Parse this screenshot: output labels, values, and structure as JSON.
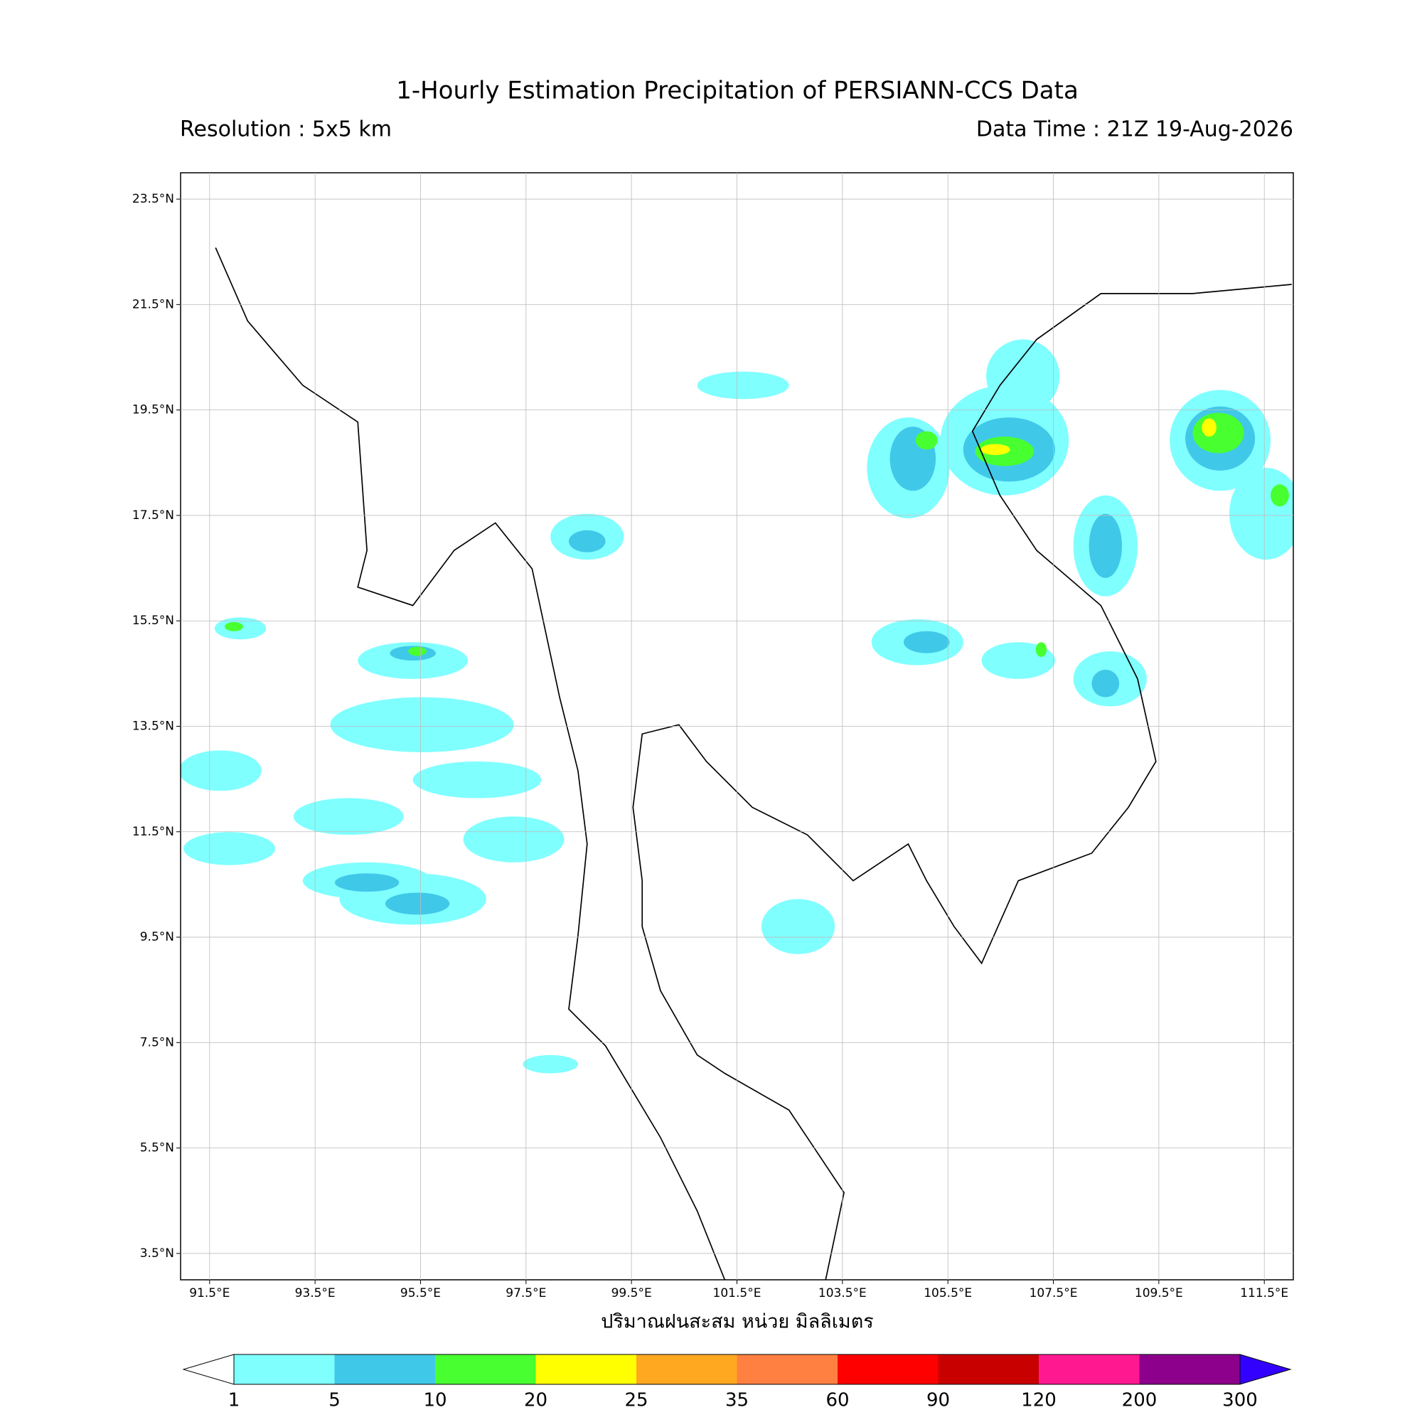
{
  "header": {
    "title": "1-Hourly Estimation Precipitation of PERSIANN-CCS Data",
    "resolution": "Resolution : 5x5 km",
    "data_time": "Data Time : 21Z 19-Aug-2026"
  },
  "map": {
    "xlim": [
      90.95,
      112.05
    ],
    "ylim": [
      3,
      24
    ],
    "xticks": [
      {
        "value": 91.5,
        "label": "91.5°E"
      },
      {
        "value": 93.5,
        "label": "93.5°E"
      },
      {
        "value": 95.5,
        "label": "95.5°E"
      },
      {
        "value": 97.5,
        "label": "97.5°E"
      },
      {
        "value": 99.5,
        "label": "99.5°E"
      },
      {
        "value": 101.5,
        "label": "101.5°E"
      },
      {
        "value": 103.5,
        "label": "103.5°E"
      },
      {
        "value": 105.5,
        "label": "105.5°E"
      },
      {
        "value": 107.5,
        "label": "107.5°E"
      },
      {
        "value": 109.5,
        "label": "109.5°E"
      },
      {
        "value": 111.5,
        "label": "111.5°E"
      }
    ],
    "yticks": [
      {
        "value": 3.5,
        "label": "3.5°N"
      },
      {
        "value": 5.5,
        "label": "5.5°N"
      },
      {
        "value": 7.5,
        "label": "7.5°N"
      },
      {
        "value": 9.5,
        "label": "9.5°N"
      },
      {
        "value": 11.5,
        "label": "11.5°N"
      },
      {
        "value": 13.5,
        "label": "13.5°N"
      },
      {
        "value": 15.5,
        "label": "15.5°N"
      },
      {
        "value": 17.5,
        "label": "17.5°N"
      },
      {
        "value": 19.5,
        "label": "19.5°N"
      },
      {
        "value": 21.5,
        "label": "21.5°N"
      },
      {
        "value": 23.5,
        "label": "23.5°N"
      }
    ],
    "grid": true,
    "xlabel": "ปริมาณฝนสะสม หน่วย มิลลิเมตร"
  },
  "colorbar": {
    "levels": [
      1,
      5,
      10,
      20,
      25,
      35,
      60,
      90,
      120,
      200,
      300
    ],
    "colors": [
      "#80ffff",
      "#40c8e8",
      "#48ff30",
      "#ffff00",
      "#ffa820",
      "#ff8040",
      "#ff0000",
      "#c80000",
      "#ff1890",
      "#8c008c"
    ],
    "under_color": "#ffffff",
    "over_color": "#3300ff"
  }
}
